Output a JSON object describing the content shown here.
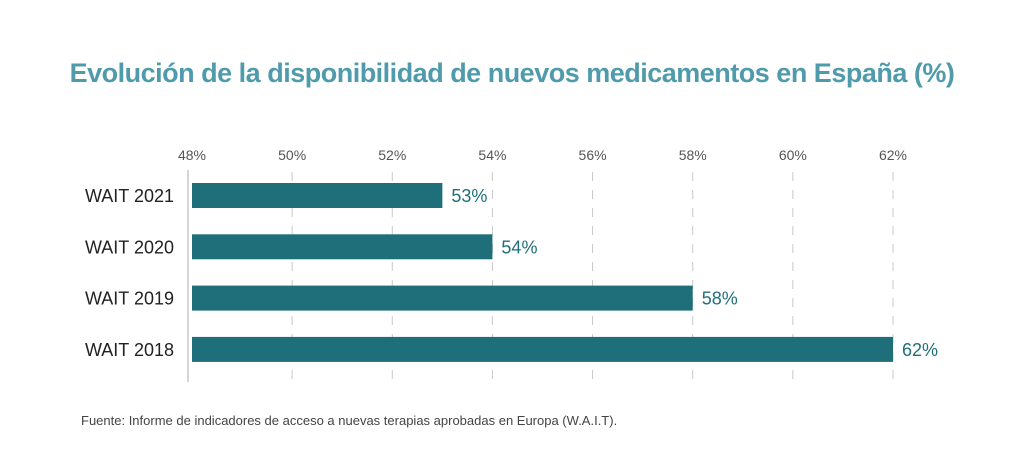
{
  "chart_data": {
    "type": "bar",
    "orientation": "horizontal",
    "title": "Evolución de la disponibilidad de nuevos medicamentos en España (%)",
    "categories": [
      "WAIT 2021",
      "WAIT 2020",
      "WAIT 2019",
      "WAIT 2018"
    ],
    "values": [
      53,
      54,
      58,
      62
    ],
    "value_labels": [
      "53%",
      "54%",
      "58%",
      "62%"
    ],
    "xlim": [
      48,
      62
    ],
    "x_ticks": [
      48,
      50,
      52,
      54,
      56,
      58,
      60,
      62
    ],
    "x_tick_labels": [
      "48%",
      "50%",
      "52%",
      "54%",
      "56%",
      "58%",
      "60%",
      "62%"
    ],
    "grid": true,
    "bar_color": "#1f6f7a",
    "title_color": "#4f9bab"
  },
  "source": "Fuente: Informe de indicadores de acceso a nuevas terapias aprobadas en Europa (W.A.I.T)."
}
